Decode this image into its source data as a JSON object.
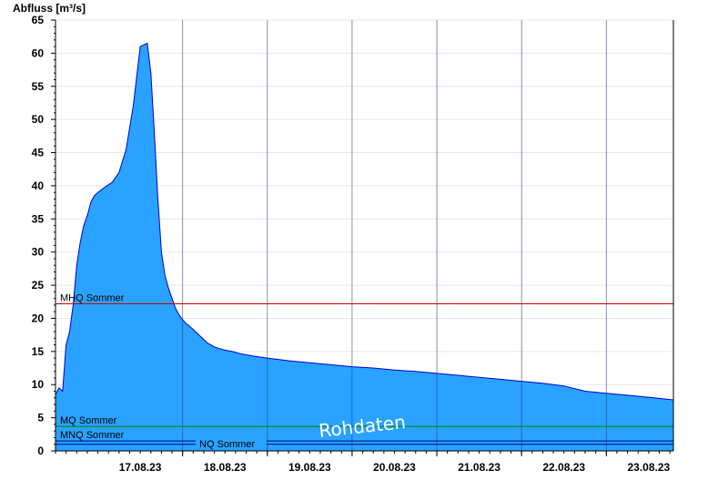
{
  "chart_data": {
    "type": "area",
    "ylabel": "Abfluss [m³/s]",
    "ylim": [
      0,
      65
    ],
    "yticks": [
      0,
      5,
      10,
      15,
      20,
      25,
      30,
      35,
      40,
      45,
      50,
      55,
      60,
      65
    ],
    "x_range": [
      "16.08.23 12:00",
      "23.08.23 19:00"
    ],
    "xticks": [
      "17.08.23",
      "18.08.23",
      "19.08.23",
      "20.08.23",
      "21.08.23",
      "22.08.23",
      "23.08.23"
    ],
    "grid": true,
    "series": [
      {
        "color": "#29a3ff",
        "line_color": "#0000cc",
        "x": [
          "16.08.23 12:00",
          "16.08.23 13:00",
          "16.08.23 14:00",
          "16.08.23 15:00",
          "16.08.23 16:00",
          "16.08.23 17:00",
          "16.08.23 18:00",
          "16.08.23 19:00",
          "16.08.23 20:00",
          "16.08.23 21:00",
          "16.08.23 22:00",
          "16.08.23 23:00",
          "17.08.23 00:00",
          "17.08.23 02:00",
          "17.08.23 04:00",
          "17.08.23 06:00",
          "17.08.23 08:00",
          "17.08.23 10:00",
          "17.08.23 12:00",
          "17.08.23 14:00",
          "17.08.23 15:00",
          "17.08.23 16:00",
          "17.08.23 17:00",
          "17.08.23 18:00",
          "17.08.23 19:00",
          "17.08.23 20:00",
          "17.08.23 21:00",
          "17.08.23 22:00",
          "17.08.23 23:00",
          "18.08.23 00:00",
          "18.08.23 01:00",
          "18.08.23 02:00",
          "18.08.23 03:00",
          "18.08.23 04:00",
          "18.08.23 05:00",
          "18.08.23 06:00",
          "18.08.23 07:00",
          "18.08.23 08:00",
          "18.08.23 09:00",
          "18.08.23 10:00",
          "18.08.23 12:00",
          "18.08.23 14:00",
          "18.08.23 16:00",
          "18.08.23 18:00",
          "18.08.23 20:00",
          "19.08.23 00:00",
          "19.08.23 06:00",
          "19.08.23 12:00",
          "19.08.23 18:00",
          "20.08.23 00:00",
          "20.08.23 06:00",
          "20.08.23 12:00",
          "20.08.23 18:00",
          "21.08.23 00:00",
          "21.08.23 06:00",
          "21.08.23 12:00",
          "21.08.23 18:00",
          "22.08.23 00:00",
          "22.08.23 06:00",
          "22.08.23 12:00",
          "22.08.23 18:00",
          "23.08.23 00:00",
          "23.08.23 06:00",
          "23.08.23 12:00",
          "23.08.23 19:00"
        ],
        "values": [
          8.5,
          9.5,
          9.0,
          16.0,
          18.0,
          22.0,
          28.0,
          31.5,
          34.0,
          35.5,
          37.5,
          38.5,
          39.0,
          39.8,
          40.5,
          42.0,
          45.5,
          52.0,
          61.0,
          61.5,
          57.0,
          48.0,
          38.0,
          30.0,
          26.5,
          24.5,
          23.0,
          21.5,
          20.5,
          19.8,
          19.2,
          18.8,
          18.3,
          17.8,
          17.3,
          16.8,
          16.3,
          16.0,
          15.7,
          15.5,
          15.2,
          15.0,
          14.7,
          14.5,
          14.3,
          14.0,
          13.6,
          13.3,
          13.0,
          12.7,
          12.5,
          12.2,
          12.0,
          11.7,
          11.4,
          11.1,
          10.8,
          10.5,
          10.2,
          9.8,
          9.0,
          8.7,
          8.4,
          8.1,
          7.7
        ]
      }
    ],
    "reference_lines": [
      {
        "label": "MHQ Sommer",
        "value": 22.2,
        "color": "#cc0000",
        "label_pos": "left"
      },
      {
        "label": "MQ Sommer",
        "value": 3.7,
        "color": "#008000",
        "label_pos": "left"
      },
      {
        "label": "MNQ Sommer",
        "value": 1.5,
        "color": "#000080",
        "label_pos": "left"
      },
      {
        "label": "NQ Sommer",
        "value": 1.0,
        "color": "#000080",
        "label_pos": "center"
      }
    ],
    "watermark": "Rohdaten"
  }
}
